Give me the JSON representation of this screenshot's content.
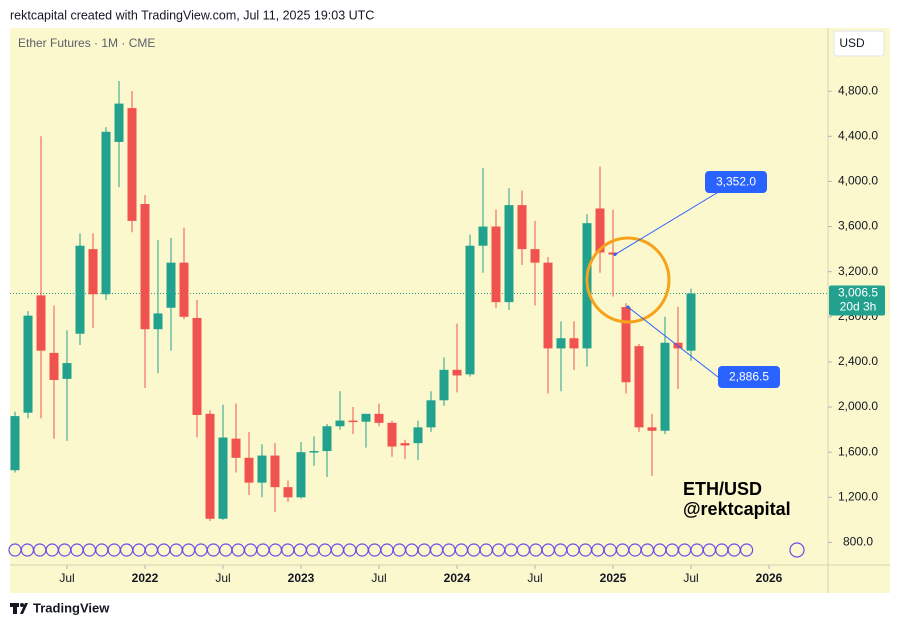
{
  "header": "rektcapital created with TradingView.com, Jul 11, 2025 19:03 UTC",
  "footer": "TradingView",
  "chart_data": {
    "type": "candlestick",
    "symbol": "Ether Futures · 1M · CME",
    "currency": "USD",
    "watermark": [
      "ETH/USD",
      "@rektcapital"
    ],
    "up_color": "#22a18e",
    "down_color": "#f0534f",
    "x": [
      "2021-03",
      "2021-04",
      "2021-05",
      "2021-06",
      "2021-07",
      "2021-08",
      "2021-09",
      "2021-10",
      "2021-11",
      "2021-12",
      "2022-01",
      "2022-02",
      "2022-03",
      "2022-04",
      "2022-05",
      "2022-06",
      "2022-07",
      "2022-08",
      "2022-09",
      "2022-10",
      "2022-11",
      "2022-12",
      "2023-01",
      "2023-02",
      "2023-03",
      "2023-04",
      "2023-05",
      "2023-06",
      "2023-07",
      "2023-08",
      "2023-09",
      "2023-10",
      "2023-11",
      "2023-12",
      "2024-01",
      "2024-02",
      "2024-03",
      "2024-04",
      "2024-05",
      "2024-06",
      "2024-07",
      "2024-08",
      "2024-09",
      "2024-10",
      "2024-11",
      "2024-12",
      "2025-01",
      "2025-02",
      "2025-03",
      "2025-04",
      "2025-05",
      "2025-06",
      "2025-07"
    ],
    "open": [
      1440,
      1950,
      2990,
      2480,
      2250,
      2650,
      3400,
      3000,
      4350,
      4650,
      3800,
      2690,
      2880,
      3280,
      2790,
      1940,
      1010,
      1720,
      1550,
      1330,
      1570,
      1290,
      1200,
      1600,
      1610,
      1830,
      1880,
      1870,
      1940,
      1860,
      1680,
      1680,
      1820,
      2060,
      2330,
      2290,
      3430,
      3600,
      2930,
      3790,
      3400,
      3280,
      2520,
      2610,
      2520,
      3760,
      3370,
      2886.5,
      2540,
      1820,
      1790,
      2570,
      2500
    ],
    "high": [
      1960,
      2850,
      4400,
      2900,
      2680,
      3540,
      3540,
      4480,
      4890,
      4800,
      3880,
      3480,
      3500,
      3590,
      2950,
      1970,
      2020,
      2030,
      1780,
      1670,
      1680,
      1350,
      1690,
      1740,
      1850,
      2140,
      2000,
      1940,
      2030,
      1880,
      1710,
      1880,
      2140,
      2440,
      2740,
      3530,
      4120,
      3750,
      3940,
      3920,
      3650,
      3330,
      2760,
      2760,
      3710,
      4130,
      3750,
      2920,
      2560,
      1940,
      2800,
      2890,
      3050
    ],
    "low": [
      1420,
      1900,
      1900,
      1720,
      1700,
      2550,
      2700,
      2950,
      3950,
      3550,
      2170,
      2300,
      2500,
      2780,
      1730,
      990,
      1000,
      1420,
      1220,
      1200,
      1070,
      1160,
      1190,
      1480,
      1380,
      1800,
      1760,
      1640,
      1830,
      1560,
      1540,
      1530,
      1780,
      2010,
      2130,
      2270,
      3190,
      2880,
      2860,
      3260,
      2900,
      2120,
      2140,
      2330,
      2360,
      3190,
      2980,
      2120,
      1780,
      1390,
      1760,
      2160,
      2410
    ],
    "close": [
      1920,
      2810,
      2500,
      2240,
      2390,
      3430,
      3000,
      4440,
      4690,
      3650,
      2690,
      2830,
      3280,
      2800,
      1930,
      1010,
      1730,
      1550,
      1330,
      1570,
      1290,
      1200,
      1600,
      1610,
      1830,
      1880,
      1870,
      1940,
      1860,
      1650,
      1660,
      1820,
      2060,
      2330,
      2280,
      3430,
      3600,
      2930,
      3790,
      3400,
      3280,
      2520,
      2610,
      2520,
      3630,
      3370,
      3352,
      2220,
      1820,
      1790,
      2570,
      2520,
      3006.5
    ],
    "ylim": [
      600,
      5360
    ],
    "yticks": [
      {
        "value": 800,
        "label": "800.0"
      },
      {
        "value": 1200,
        "label": "1,200.0"
      },
      {
        "value": 1600,
        "label": "1,600.0"
      },
      {
        "value": 2000,
        "label": "2,000.0"
      },
      {
        "value": 2400,
        "label": "2,400.0"
      },
      {
        "value": 2800,
        "label": "2,800.0"
      },
      {
        "value": 3200,
        "label": "3,200.0"
      },
      {
        "value": 3600,
        "label": "3,600.0"
      },
      {
        "value": 4000,
        "label": "4,000.0"
      },
      {
        "value": 4400,
        "label": "4,400.0"
      },
      {
        "value": 4800,
        "label": "4,800.0"
      }
    ],
    "xticks": [
      {
        "value": "2021-07",
        "label": "Jul"
      },
      {
        "value": "2022-01",
        "label": "2022"
      },
      {
        "value": "2022-07",
        "label": "Jul"
      },
      {
        "value": "2023-01",
        "label": "2023"
      },
      {
        "value": "2023-07",
        "label": "Jul"
      },
      {
        "value": "2024-01",
        "label": "2024"
      },
      {
        "value": "2024-07",
        "label": "Jul"
      },
      {
        "value": "2025-01",
        "label": "2025"
      },
      {
        "value": "2025-07",
        "label": "Jul"
      },
      {
        "value": "2026-01",
        "label": "2026"
      }
    ],
    "last_price": {
      "value": 3006.5,
      "label": "3,006.5"
    },
    "countdown": "20d 3h",
    "annotations": [
      {
        "x": "2025-01",
        "value": 3352,
        "label": "3,352.0"
      },
      {
        "x": "2025-02",
        "value": 2886.5,
        "label": "2,886.5"
      }
    ]
  }
}
